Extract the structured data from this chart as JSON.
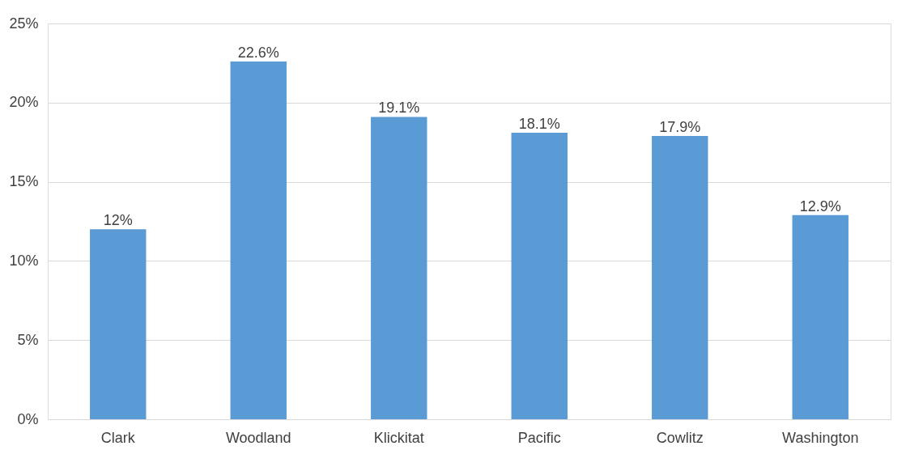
{
  "chart_data": {
    "type": "bar",
    "categories": [
      "Clark",
      "Woodland",
      "Klickitat",
      "Pacific",
      "Cowlitz",
      "Washington"
    ],
    "values": [
      12,
      22.6,
      19.1,
      18.1,
      17.9,
      12.9
    ],
    "value_labels": [
      "12%",
      "22.6%",
      "19.1%",
      "18.1%",
      "17.9%",
      "12.9%"
    ],
    "color": "#5b9bd5",
    "ylim": [
      0,
      25
    ],
    "yticks": [
      {
        "value": 0,
        "label": "0%"
      },
      {
        "value": 5,
        "label": "5%"
      },
      {
        "value": 10,
        "label": "10%"
      },
      {
        "value": 15,
        "label": "15%"
      },
      {
        "value": 20,
        "label": "20%"
      },
      {
        "value": 25,
        "label": "25%"
      }
    ],
    "grid": "y"
  }
}
